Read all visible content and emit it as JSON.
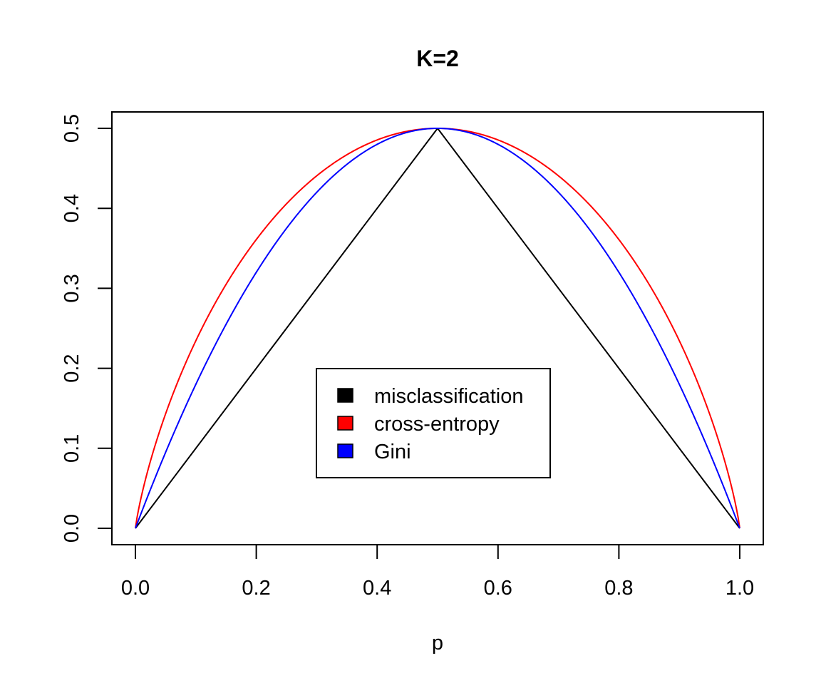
{
  "chart_data": {
    "type": "line",
    "title": "K=2",
    "xlabel": "p",
    "ylabel": "",
    "xlim": [
      0.0,
      1.0
    ],
    "ylim": [
      0.0,
      0.5
    ],
    "x_ticks": [
      "0.0",
      "0.2",
      "0.4",
      "0.6",
      "0.8",
      "1.0"
    ],
    "y_ticks": [
      "0.0",
      "0.1",
      "0.2",
      "0.3",
      "0.4",
      "0.5"
    ],
    "grid": false,
    "legend_position": "center-bottom",
    "x": [
      0.0,
      0.05,
      0.1,
      0.15,
      0.2,
      0.25,
      0.3,
      0.35,
      0.4,
      0.45,
      0.5,
      0.55,
      0.6,
      0.65,
      0.7,
      0.75,
      0.8,
      0.85,
      0.9,
      0.95,
      1.0
    ],
    "series": [
      {
        "name": "misclassification",
        "color": "#000000",
        "values": [
          0.0,
          0.05,
          0.1,
          0.15,
          0.2,
          0.25,
          0.3,
          0.35,
          0.4,
          0.45,
          0.5,
          0.45,
          0.4,
          0.35,
          0.3,
          0.25,
          0.2,
          0.15,
          0.1,
          0.05,
          0.0
        ]
      },
      {
        "name": "cross-entropy",
        "color": "#ff0000",
        "values": [
          0.0,
          0.143,
          0.234,
          0.305,
          0.361,
          0.406,
          0.441,
          0.467,
          0.485,
          0.496,
          0.5,
          0.496,
          0.485,
          0.467,
          0.441,
          0.406,
          0.361,
          0.305,
          0.234,
          0.143,
          0.0
        ]
      },
      {
        "name": "Gini",
        "color": "#0000ff",
        "values": [
          0.0,
          0.095,
          0.18,
          0.255,
          0.32,
          0.375,
          0.42,
          0.455,
          0.48,
          0.495,
          0.5,
          0.495,
          0.48,
          0.455,
          0.42,
          0.375,
          0.32,
          0.255,
          0.18,
          0.095,
          0.0
        ]
      }
    ]
  }
}
